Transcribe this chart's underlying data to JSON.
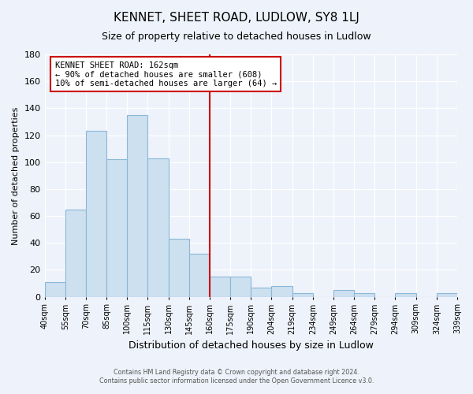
{
  "title": "KENNET, SHEET ROAD, LUDLOW, SY8 1LJ",
  "subtitle": "Size of property relative to detached houses in Ludlow",
  "xlabel": "Distribution of detached houses by size in Ludlow",
  "ylabel": "Number of detached properties",
  "bar_labels": [
    "40sqm",
    "55sqm",
    "70sqm",
    "85sqm",
    "100sqm",
    "115sqm",
    "130sqm",
    "145sqm",
    "160sqm",
    "175sqm",
    "190sqm",
    "204sqm",
    "219sqm",
    "234sqm",
    "249sqm",
    "264sqm",
    "279sqm",
    "294sqm",
    "309sqm",
    "324sqm",
    "339sqm"
  ],
  "bar_heights": [
    11,
    65,
    123,
    102,
    135,
    103,
    43,
    32,
    15,
    15,
    7,
    8,
    3,
    0,
    5,
    3,
    0,
    3,
    0,
    3
  ],
  "bar_color": "#cce0f0",
  "bar_edge_color": "#8ab8d8",
  "vline_x": 8,
  "vline_color": "#cc0000",
  "annotation_title": "KENNET SHEET ROAD: 162sqm",
  "annotation_line1": "← 90% of detached houses are smaller (608)",
  "annotation_line2": "10% of semi-detached houses are larger (64) →",
  "annotation_box_color": "#ffffff",
  "annotation_box_edge": "#cc0000",
  "ylim": [
    0,
    180
  ],
  "yticks": [
    0,
    20,
    40,
    60,
    80,
    100,
    120,
    140,
    160,
    180
  ],
  "footer1": "Contains HM Land Registry data © Crown copyright and database right 2024.",
  "footer2": "Contains public sector information licensed under the Open Government Licence v3.0.",
  "background_color": "#eef2fa"
}
